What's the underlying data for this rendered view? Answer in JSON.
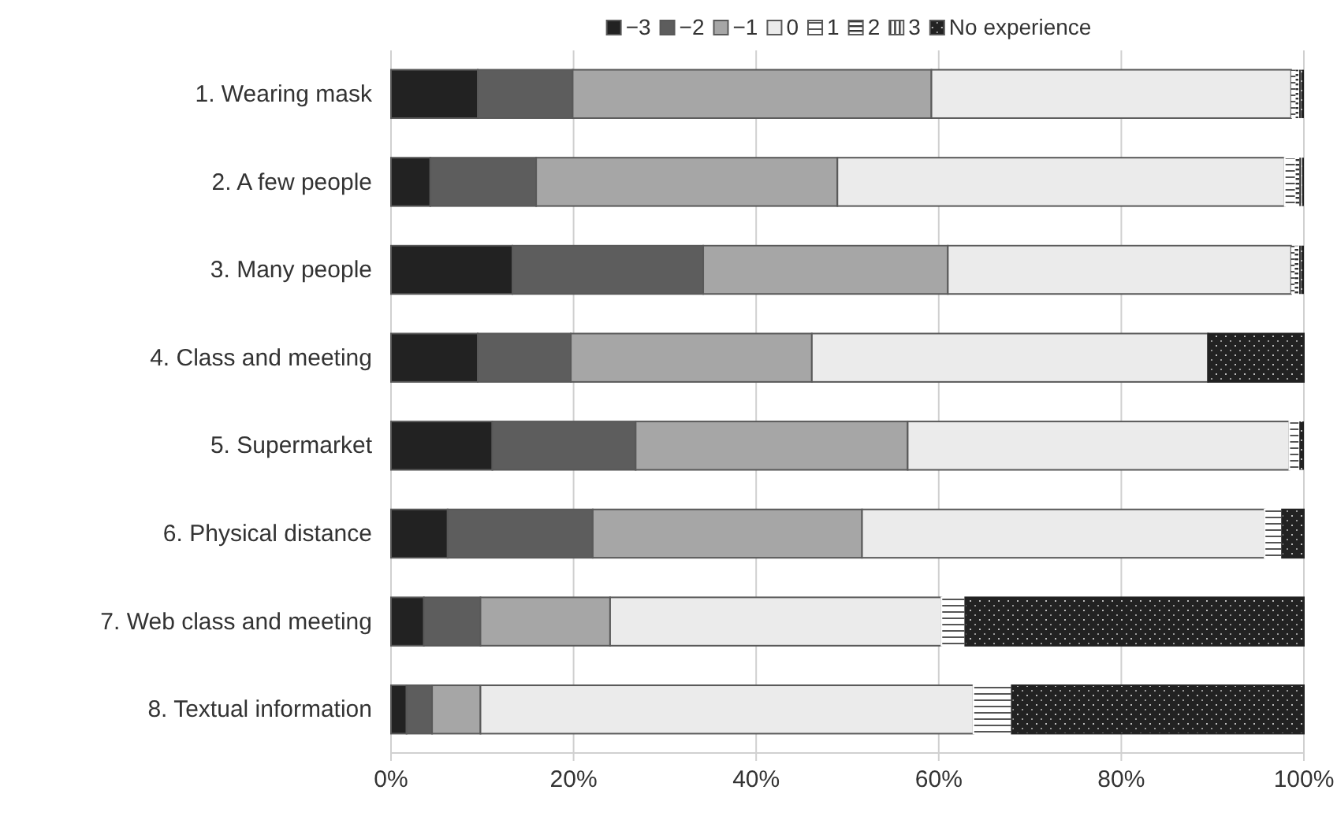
{
  "chart_data": {
    "type": "bar",
    "orientation": "horizontal",
    "stacked": true,
    "categories": [
      "1. Wearing mask",
      "2. A few people",
      "3. Many people",
      "4. Class and meeting",
      "5. Supermarket",
      "6. Physical distance",
      "7. Web class and meeting",
      "8. Textual information"
    ],
    "series": [
      {
        "name": "−3",
        "color": "#222222",
        "values": [
          9.5,
          4.3,
          13.3,
          9.5,
          11.1,
          6.2,
          3.6,
          1.7
        ]
      },
      {
        "name": "−2",
        "color": "#5d5d5d",
        "values": [
          10.4,
          11.6,
          20.9,
          10.2,
          15.7,
          15.9,
          6.2,
          2.8
        ]
      },
      {
        "name": "−1",
        "color": "#a6a6a6",
        "values": [
          39.3,
          33.0,
          26.8,
          26.4,
          29.8,
          29.5,
          14.2,
          5.3
        ]
      },
      {
        "name": "0",
        "color": "#ebebeb",
        "values": [
          39.4,
          49.0,
          37.6,
          43.4,
          41.8,
          44.1,
          36.3,
          54.0
        ]
      },
      {
        "name": "1",
        "color": "#ffffff",
        "values": [
          0.5,
          1.2,
          0.4,
          0,
          1.1,
          1.9,
          2.6,
          4.2
        ]
      },
      {
        "name": "2",
        "color": "#ffffff",
        "values": [
          0.3,
          0.4,
          0.4,
          0,
          0,
          0,
          0,
          0
        ]
      },
      {
        "name": "3",
        "color": "#ffffff",
        "values": [
          0.3,
          0.3,
          0.3,
          0,
          0,
          0,
          0,
          0
        ]
      },
      {
        "name": "No experience",
        "color": "#222222",
        "values": [
          0.3,
          0.2,
          0.3,
          10.5,
          0.5,
          2.4,
          37.1,
          32.0
        ]
      }
    ],
    "xlim": [
      0,
      100
    ],
    "xticks": [
      {
        "value": 0,
        "label": "0%"
      },
      {
        "value": 20,
        "label": "20%"
      },
      {
        "value": 40,
        "label": "40%"
      },
      {
        "value": 60,
        "label": "60%"
      },
      {
        "value": 80,
        "label": "80%"
      },
      {
        "value": 100,
        "label": "100%"
      }
    ],
    "grid": "x",
    "legend": "top"
  }
}
